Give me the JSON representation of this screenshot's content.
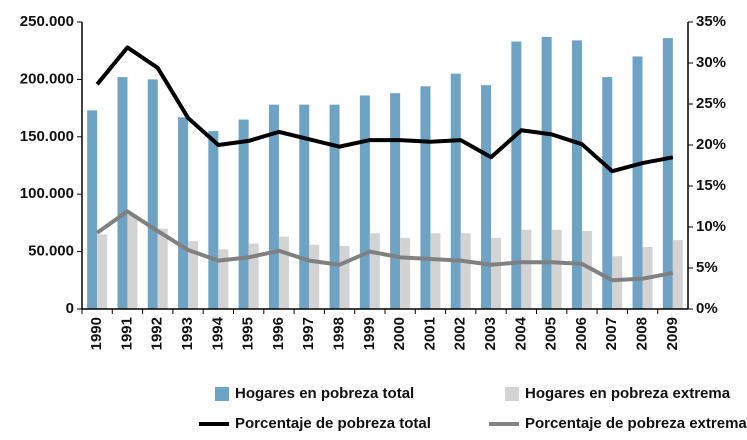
{
  "chart_data": {
    "type": "bar",
    "categories": [
      "1990",
      "1991",
      "1992",
      "1993",
      "1994",
      "1995",
      "1996",
      "1997",
      "1998",
      "1999",
      "2000",
      "2001",
      "2002",
      "2003",
      "2004",
      "2005",
      "2006",
      "2007",
      "2008",
      "2009"
    ],
    "series": [
      {
        "name": "Hogares en pobreza total",
        "type": "bar",
        "color": "#6fa3c3",
        "values": [
          173000,
          202000,
          200000,
          167000,
          155000,
          165000,
          178000,
          178000,
          178000,
          186000,
          188000,
          194000,
          205000,
          195000,
          233000,
          237000,
          234000,
          202000,
          220000,
          236000
        ]
      },
      {
        "name": "Hogares en pobreza extrema",
        "type": "bar",
        "color": "#d3d3d3",
        "values": [
          65000,
          82000,
          70000,
          59000,
          52000,
          57000,
          63000,
          56000,
          55000,
          66000,
          62000,
          66000,
          66000,
          62000,
          69000,
          69000,
          68000,
          46000,
          54000,
          60000
        ]
      },
      {
        "name": "Porcentaje de pobreza total",
        "type": "line",
        "axis": "y2",
        "color": "#000000",
        "values": [
          27.4,
          31.9,
          29.4,
          23.3,
          20.0,
          20.5,
          21.6,
          20.7,
          19.8,
          20.6,
          20.6,
          20.4,
          20.6,
          18.5,
          21.8,
          21.3,
          20.1,
          16.8,
          17.8,
          18.5
        ]
      },
      {
        "name": "Porcentaje de pobreza extrema",
        "type": "line",
        "axis": "y2",
        "color": "#808080",
        "values": [
          9.3,
          11.9,
          9.5,
          7.2,
          5.9,
          6.3,
          7.1,
          5.9,
          5.4,
          7.0,
          6.3,
          6.1,
          5.9,
          5.4,
          5.7,
          5.7,
          5.5,
          3.5,
          3.7,
          4.4
        ]
      }
    ],
    "ylim": [
      0,
      250000
    ],
    "yticks": [
      0,
      {
        "value": 50000,
        "label": "50.000"
      },
      {
        "value": 100000,
        "label": "100.000"
      },
      {
        "value": 150000,
        "label": "150.000"
      },
      {
        "value": 200000,
        "label": "200.000"
      },
      {
        "value": 250000,
        "label": "250.000"
      }
    ],
    "y2lim": [
      0,
      35
    ],
    "y2ticks": [
      {
        "value": 0,
        "label": "0%"
      },
      {
        "value": 5,
        "label": "5%"
      },
      {
        "value": 10,
        "label": "10%"
      },
      {
        "value": 15,
        "label": "15%"
      },
      {
        "value": 20,
        "label": "20%"
      },
      {
        "value": 25,
        "label": "25%"
      },
      {
        "value": 30,
        "label": "30%"
      },
      {
        "value": 35,
        "label": "35%"
      }
    ],
    "grid": false,
    "legend": "bottom"
  }
}
